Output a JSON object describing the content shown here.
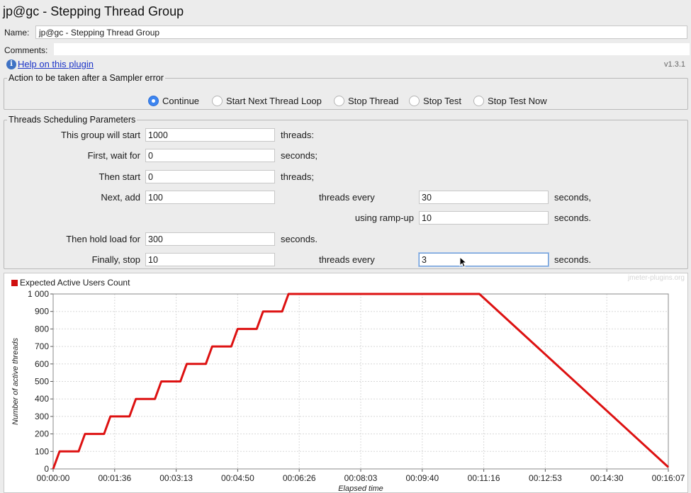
{
  "window": {
    "title": "jp@gc - Stepping Thread Group"
  },
  "name_field": {
    "label": "Name:",
    "value": "jp@gc - Stepping Thread Group"
  },
  "comments_field": {
    "label": "Comments:",
    "value": ""
  },
  "help": {
    "icon": "info-icon",
    "link_text": "Help on this plugin",
    "version": "v1.3.1"
  },
  "sampler_error": {
    "legend": "Action to be taken after a Sampler error",
    "options": [
      "Continue",
      "Start Next Thread Loop",
      "Stop Thread",
      "Stop Test",
      "Stop Test Now"
    ],
    "selected": "Continue"
  },
  "scheduling": {
    "legend": "Threads Scheduling Parameters",
    "start_label": "This group will start",
    "start_value": "1000",
    "start_unit": "threads:",
    "wait_label": "First, wait for",
    "wait_value": "0",
    "wait_unit": "seconds;",
    "then_start_label": "Then start",
    "then_start_value": "0",
    "then_start_unit": "threads;",
    "next_add_label": "Next, add",
    "next_add_value": "100",
    "next_add_every": "threads every",
    "next_add_period": "30",
    "next_add_unit": "seconds,",
    "rampup_label": "using ramp-up",
    "rampup_value": "10",
    "rampup_unit": "seconds.",
    "hold_label": "Then hold load for",
    "hold_value": "300",
    "hold_unit": "seconds.",
    "stop_label": "Finally, stop",
    "stop_value": "10",
    "stop_every": "threads every",
    "stop_period": "3",
    "stop_unit": "seconds."
  },
  "chart_data": {
    "type": "line",
    "title": "",
    "legend": [
      "Expected Active Users Count"
    ],
    "watermark": "jmeter-plugins.org",
    "xlabel": "Elapsed time",
    "ylabel": "Number of active threads",
    "x_ticks": [
      "00:00:00",
      "00:01:36",
      "00:03:13",
      "00:04:50",
      "00:06:26",
      "00:08:03",
      "00:09:40",
      "00:11:16",
      "00:12:53",
      "00:14:30",
      "00:16:07"
    ],
    "y_ticks": [
      "0",
      "100",
      "200",
      "300",
      "400",
      "500",
      "600",
      "700",
      "800",
      "900",
      "1 000"
    ],
    "xlim_seconds": [
      0,
      967
    ],
    "ylim": [
      0,
      1000
    ],
    "color": "#dd1111",
    "series": [
      {
        "name": "Expected Active Users Count",
        "x_seconds": [
          0,
          10,
          40,
          50,
          80,
          90,
          120,
          130,
          160,
          170,
          200,
          210,
          240,
          250,
          280,
          290,
          320,
          330,
          360,
          370,
          670,
          967
        ],
        "values": [
          0,
          100,
          100,
          200,
          200,
          300,
          300,
          400,
          400,
          500,
          500,
          600,
          600,
          700,
          700,
          800,
          800,
          900,
          900,
          1000,
          1000,
          10
        ]
      }
    ]
  }
}
